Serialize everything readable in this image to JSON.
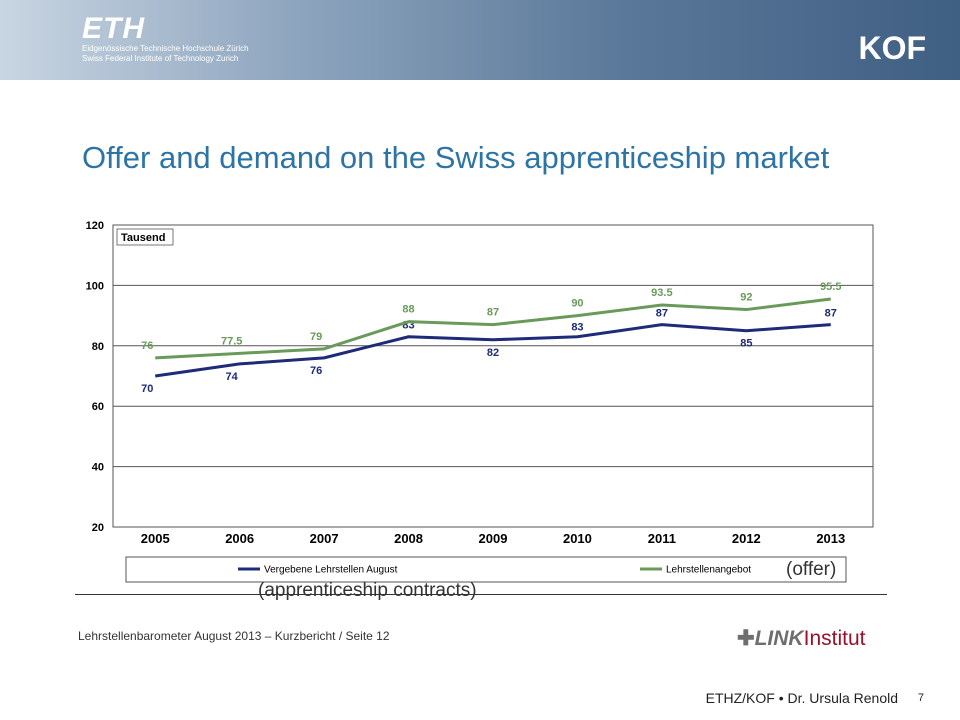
{
  "header": {
    "eth_logo": "ETH",
    "eth_line1": "Eidgenössische Technische Hochschule Zürich",
    "eth_line2": "Swiss Federal Institute of Technology Zurich",
    "kof_logo": "KOF"
  },
  "title": "Offer and demand on the Swiss apprenticeship market",
  "chart_data": {
    "type": "line",
    "x": [
      "2005",
      "2006",
      "2007",
      "2008",
      "2009",
      "2010",
      "2011",
      "2012",
      "2013"
    ],
    "ylim": [
      20,
      120
    ],
    "yticks": [
      20,
      40,
      60,
      80,
      100,
      120
    ],
    "unit_label": "Tausend",
    "grid": true,
    "legend_position": "bottom",
    "series": [
      {
        "name": "Vergebene Lehrstellen August",
        "color": "#1f2a78",
        "values": [
          70,
          74,
          76,
          83,
          82,
          83,
          87,
          85,
          87
        ],
        "labels": [
          "70",
          "74",
          "76",
          "83",
          "82",
          "83",
          "87",
          "85",
          "87"
        ]
      },
      {
        "name": "Lehrstellenangebot",
        "color": "#6a9a5a",
        "values": [
          76,
          77.5,
          79,
          88,
          87,
          90,
          93.5,
          92,
          95.5
        ],
        "labels": [
          "76",
          "77.5",
          "79",
          "88",
          "87",
          "90",
          "93.5",
          "92",
          "95.5"
        ]
      }
    ]
  },
  "annotations": {
    "offer": "(offer)",
    "contracts": "(apprenticeship contracts)"
  },
  "source": "Lehrstellenbarometer August 2013 – Kurzbericht / Seite 12",
  "link_logo": {
    "mark": "LINK",
    "word": "Institut"
  },
  "footer": {
    "text": "ETHZ/KOF • Dr. Ursula Renold",
    "page": "7"
  }
}
